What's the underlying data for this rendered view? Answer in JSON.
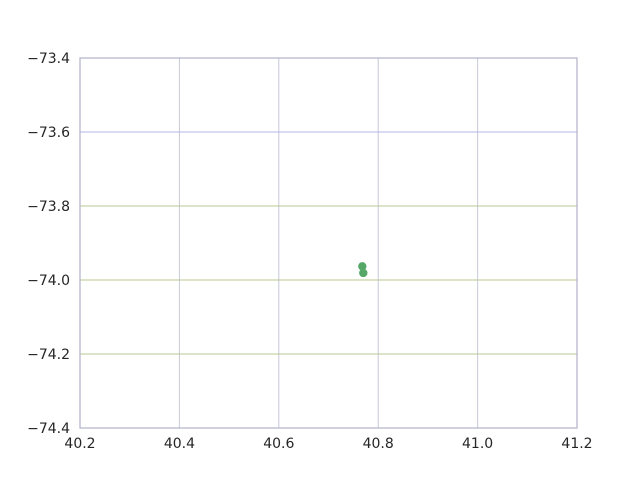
{
  "chart_data": {
    "type": "scatter",
    "title": "",
    "xlabel": "",
    "ylabel": "",
    "xlim": [
      40.2,
      41.2
    ],
    "ylim": [
      -74.4,
      -73.4
    ],
    "xticks": [
      40.2,
      40.4,
      40.6,
      40.8,
      41.0,
      41.2
    ],
    "xtick_labels": [
      "40.2",
      "40.4",
      "40.6",
      "40.8",
      "41.0",
      "41.2"
    ],
    "yticks": [
      -74.4,
      -74.2,
      -74.0,
      -73.8,
      -73.6,
      -73.4
    ],
    "ytick_labels": [
      "−74.4",
      "−74.2",
      "−74.0",
      "−73.8",
      "−73.6",
      "−73.4"
    ],
    "grid": true,
    "series": [
      {
        "color": "#55a868",
        "points": [
          {
            "x": 40.768,
            "y": -73.963
          },
          {
            "x": 40.77,
            "y": -73.981
          }
        ]
      }
    ],
    "colors": {
      "axes_frame": "#b0b0c8",
      "grid_vertical": "#c8c8d8",
      "grid_y_blue": "#b4b4e8",
      "grid_y_green": "#b8c890"
    }
  }
}
